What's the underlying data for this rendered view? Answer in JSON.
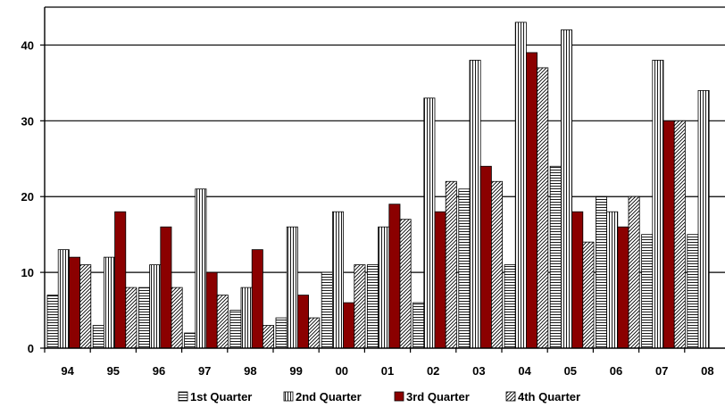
{
  "chart_data": {
    "type": "bar",
    "title": "",
    "xlabel": "",
    "ylabel": "",
    "categories": [
      "94",
      "95",
      "96",
      "97",
      "98",
      "99",
      "00",
      "01",
      "02",
      "03",
      "04",
      "05",
      "06",
      "07",
      "08"
    ],
    "series": [
      {
        "name": "1st Quarter",
        "pattern": "horizontal-lines",
        "values": [
          7,
          3,
          8,
          2,
          5,
          4,
          10,
          11,
          6,
          21,
          11,
          24,
          20,
          15,
          15
        ]
      },
      {
        "name": "2nd Quarter",
        "pattern": "vertical-lines",
        "values": [
          13,
          12,
          11,
          21,
          8,
          16,
          18,
          16,
          33,
          38,
          43,
          42,
          18,
          38,
          34
        ]
      },
      {
        "name": "3rd Quarter",
        "pattern": "solid",
        "color": "#8b0000",
        "values": [
          12,
          18,
          16,
          10,
          13,
          7,
          6,
          19,
          18,
          24,
          39,
          18,
          16,
          30,
          null
        ]
      },
      {
        "name": "4th Quarter",
        "pattern": "diagonal-lines",
        "values": [
          11,
          8,
          8,
          7,
          3,
          4,
          11,
          17,
          22,
          22,
          37,
          14,
          20,
          30,
          null
        ]
      }
    ],
    "ylim": [
      0,
      45
    ],
    "yticks": [
      0,
      10,
      20,
      30,
      40
    ],
    "grid": "horizontal",
    "legend_position": "bottom"
  },
  "colors": {
    "bar_outline": "#000000",
    "hatch_fill": "#ffffff",
    "third_quarter": "#8b0000",
    "grid": "#000000",
    "background": "#ffffff"
  }
}
